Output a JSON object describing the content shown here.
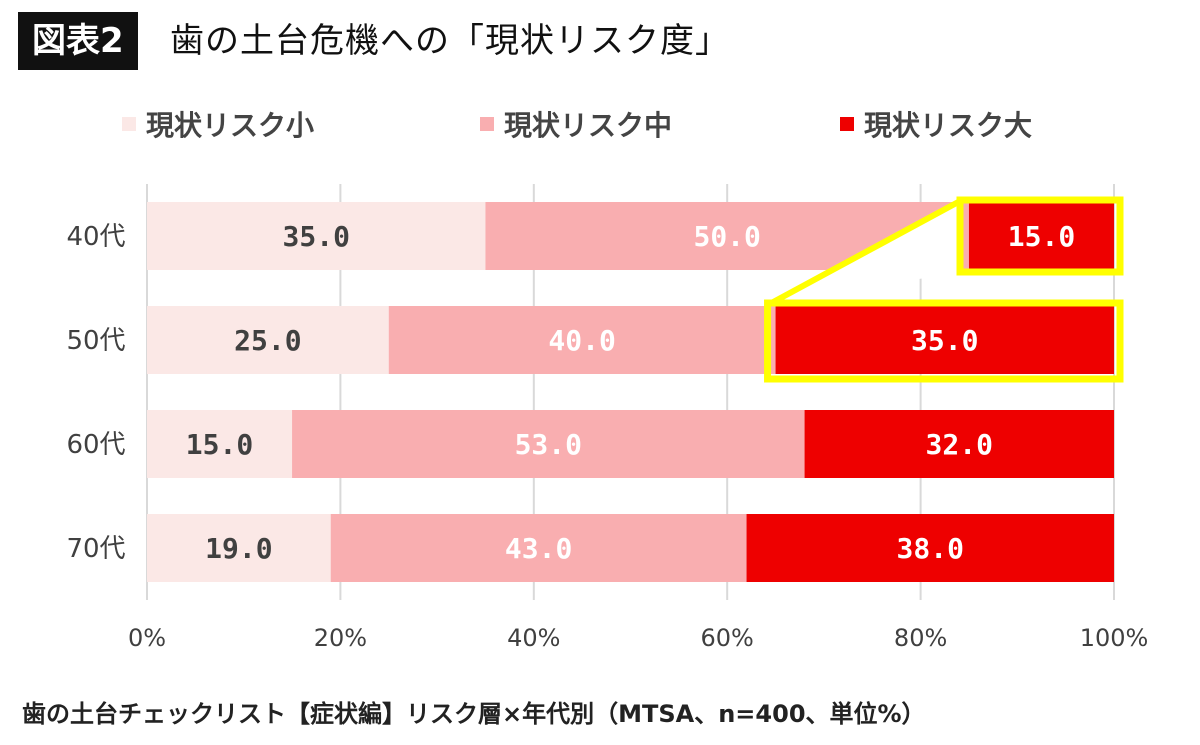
{
  "header": {
    "badge": "図表2",
    "title": "歯の土台危機への「現状リスク度」"
  },
  "caption": "歯の土台チェックリスト【症状編】リスク層×年代別（MTSA、n=400、単位%）",
  "colors": {
    "low": "#fbe8e6",
    "mid": "#f9aeb0",
    "high": "#ee0000",
    "highlight": "#ffff00",
    "grid": "#d9d9d9",
    "label_dark": "#404040",
    "label_light": "#ffffff"
  },
  "chart_data": {
    "type": "bar",
    "orientation": "horizontal",
    "stacked": true,
    "categories": [
      "40代",
      "50代",
      "60代",
      "70代"
    ],
    "series": [
      {
        "name": "現状リスク小",
        "values": [
          35.0,
          25.0,
          15.0,
          19.0
        ]
      },
      {
        "name": "現状リスク中",
        "values": [
          50.0,
          40.0,
          53.0,
          43.0
        ]
      },
      {
        "name": "現状リスク大",
        "values": [
          15.0,
          35.0,
          32.0,
          38.0
        ]
      }
    ],
    "value_labels": [
      [
        "35.0",
        "25.0",
        "15.0",
        "19.0"
      ],
      [
        "50.0",
        "40.0",
        "53.0",
        "43.0"
      ],
      [
        "15.0",
        "35.0",
        "32.0",
        "38.0"
      ]
    ],
    "xlim": [
      0,
      100
    ],
    "xticks": [
      "0%",
      "20%",
      "40%",
      "60%",
      "80%",
      "100%"
    ],
    "grid": true,
    "legend": "top",
    "highlight": "40代と50代の「現状リスク大」を黄色枠で強調"
  }
}
